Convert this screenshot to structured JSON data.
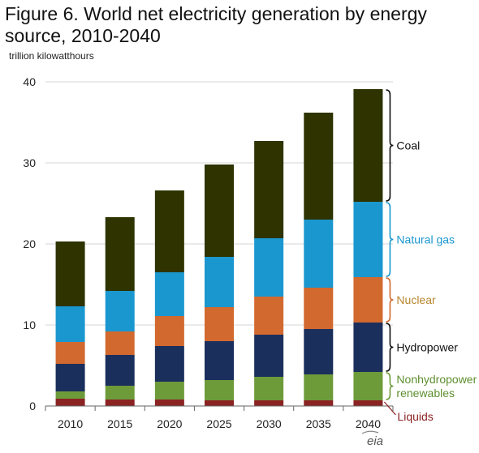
{
  "chart_data": {
    "type": "bar",
    "stacked": true,
    "title": "Figure 6. World net electricity generation by energy source, 2010-2040",
    "ylabel": "trillion  kilowatthours",
    "xlabel": "",
    "categories": [
      "2010",
      "2015",
      "2020",
      "2025",
      "2030",
      "2035",
      "2040"
    ],
    "ylim": [
      0,
      40
    ],
    "yticks": [
      0,
      10,
      20,
      30,
      40
    ],
    "grid": true,
    "legend": "right, bracketed labels",
    "series": [
      {
        "name": "Liquids",
        "color": "#8B2323",
        "values": [
          0.9,
          0.8,
          0.8,
          0.7,
          0.7,
          0.7,
          0.7
        ]
      },
      {
        "name": "Nonhydropower renewables",
        "color": "#6E9B3A",
        "values": [
          0.9,
          1.7,
          2.2,
          2.5,
          2.9,
          3.2,
          3.5
        ]
      },
      {
        "name": "Hydropower",
        "color": "#1B2F5C",
        "values": [
          3.4,
          3.8,
          4.4,
          4.8,
          5.2,
          5.6,
          6.1
        ]
      },
      {
        "name": "Nuclear",
        "color": "#D2692F",
        "values": [
          2.7,
          2.9,
          3.7,
          4.2,
          4.7,
          5.1,
          5.6
        ]
      },
      {
        "name": "Natural gas",
        "color": "#1A97CF",
        "values": [
          4.4,
          5.0,
          5.4,
          6.2,
          7.2,
          8.4,
          9.3
        ]
      },
      {
        "name": "Coal",
        "color": "#2E3300",
        "values": [
          8.0,
          9.1,
          10.1,
          11.4,
          12.0,
          13.2,
          13.9
        ]
      }
    ],
    "legend_labels": [
      {
        "text": "Coal",
        "color": "#111111"
      },
      {
        "text": "Natural  gas",
        "color": "#1A97CF"
      },
      {
        "text": "Nuclear",
        "color": "#B8862F"
      },
      {
        "text": "Hydropower",
        "color": "#111111"
      },
      {
        "text": "Nonhydropower",
        "color": "#5E8F2E"
      },
      {
        "text": "renewables",
        "color": "#5E8F2E"
      },
      {
        "text": "Liquids",
        "color": "#8B2323"
      }
    ]
  },
  "source_logo": "eia"
}
